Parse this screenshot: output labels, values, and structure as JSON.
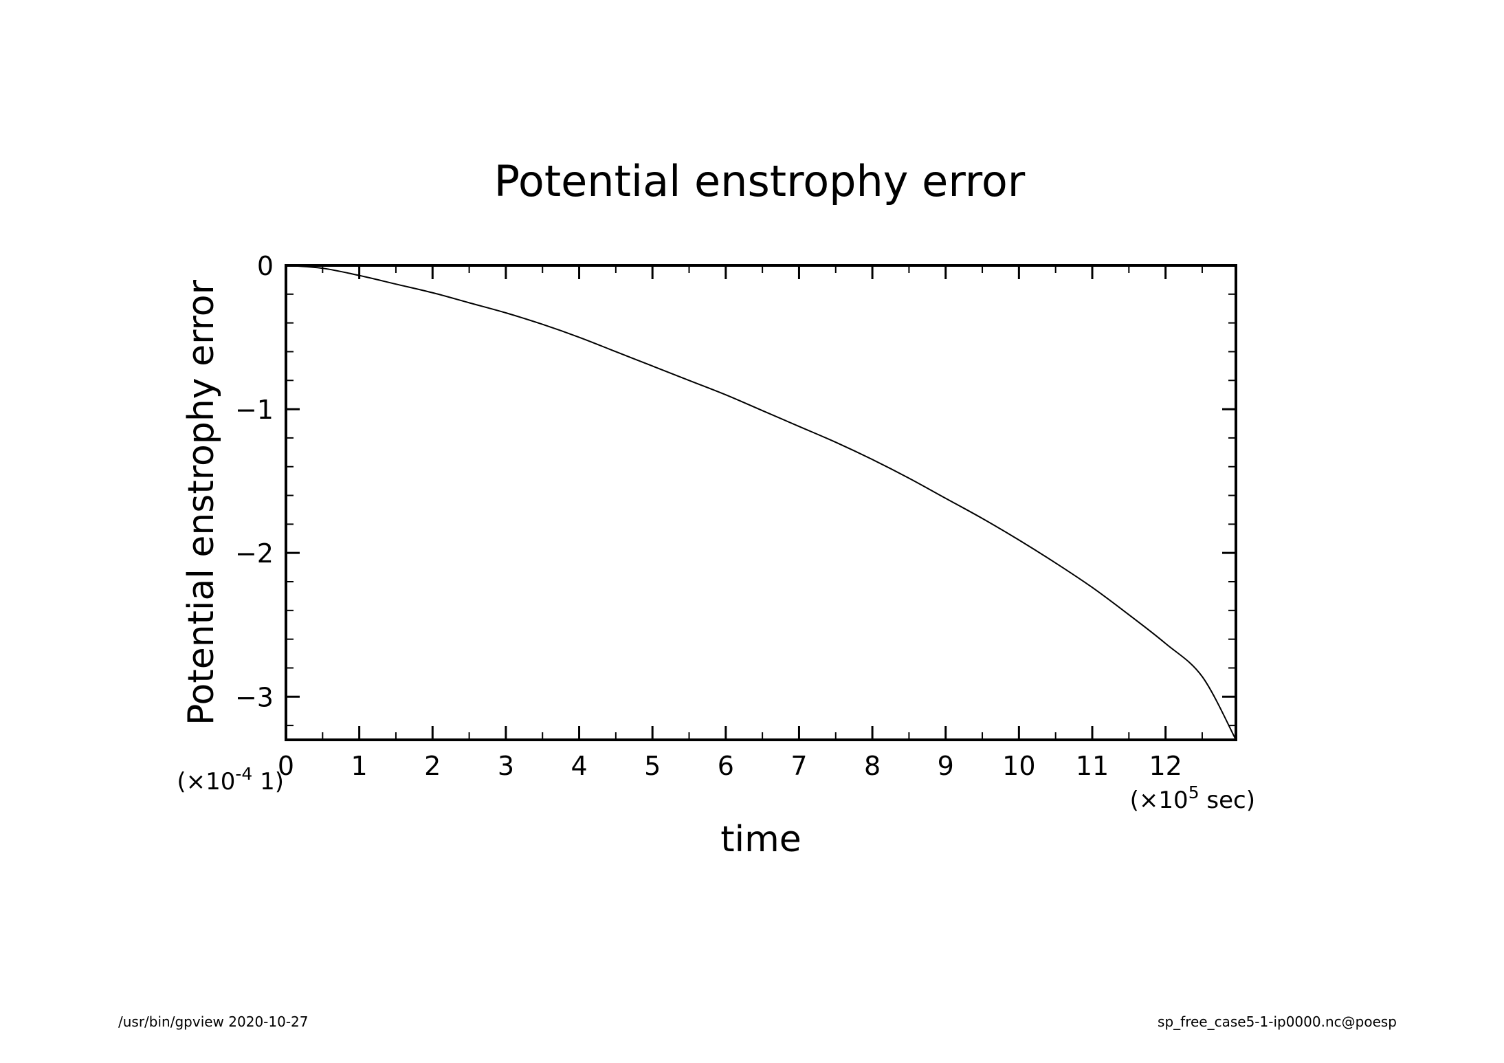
{
  "footer": {
    "left": "/usr/bin/gpview  2020-10-27",
    "right": "sp_free_case5-1-ip0000.nc@poesp"
  },
  "chart_data": {
    "type": "line",
    "title": "Potential enstrophy error",
    "xlabel": "time",
    "ylabel": "Potential enstrophy error",
    "x_scale_label": {
      "prefix": "(×10",
      "exp": "5",
      "suffix": " sec)"
    },
    "y_scale_label": {
      "prefix": "(×10",
      "exp": "-4",
      "suffix": " 1)"
    },
    "xlim": [
      0,
      12.96
    ],
    "ylim": [
      -3.3,
      0
    ],
    "xticks_major": [
      0,
      1,
      2,
      3,
      4,
      5,
      6,
      7,
      8,
      9,
      10,
      11,
      12
    ],
    "xticks_minor": [
      0.5,
      1.5,
      2.5,
      3.5,
      4.5,
      5.5,
      6.5,
      7.5,
      8.5,
      9.5,
      10.5,
      11.5,
      12.5
    ],
    "yticks_major": [
      0,
      -1,
      -2,
      -3
    ],
    "yticks_minor": [
      -0.2,
      -0.4,
      -0.6,
      -0.8,
      -1.2,
      -1.4,
      -1.6,
      -1.8,
      -2.2,
      -2.4,
      -2.6,
      -2.8,
      -3.2
    ],
    "xtick_labels": [
      "0",
      "1",
      "2",
      "3",
      "4",
      "5",
      "6",
      "7",
      "8",
      "9",
      "10",
      "11",
      "12"
    ],
    "ytick_labels": [
      "0",
      "−1",
      "−2",
      "−3"
    ],
    "grid": false,
    "legend": "none",
    "line_color": "#000000",
    "series": [
      {
        "x": [
          0,
          0.5,
          1,
          1.5,
          2,
          2.5,
          3,
          3.5,
          4,
          4.5,
          5,
          5.5,
          6,
          6.5,
          7,
          7.5,
          8,
          8.5,
          9,
          9.5,
          10,
          10.5,
          11,
          11.5,
          12,
          12.5,
          12.96
        ],
        "values": [
          0,
          -0.02,
          -0.07,
          -0.13,
          -0.19,
          -0.26,
          -0.33,
          -0.41,
          -0.5,
          -0.6,
          -0.7,
          -0.8,
          -0.9,
          -1.01,
          -1.12,
          -1.23,
          -1.35,
          -1.48,
          -1.62,
          -1.76,
          -1.91,
          -2.07,
          -2.24,
          -2.43,
          -2.63,
          -2.86,
          -3.3
        ]
      }
    ]
  }
}
